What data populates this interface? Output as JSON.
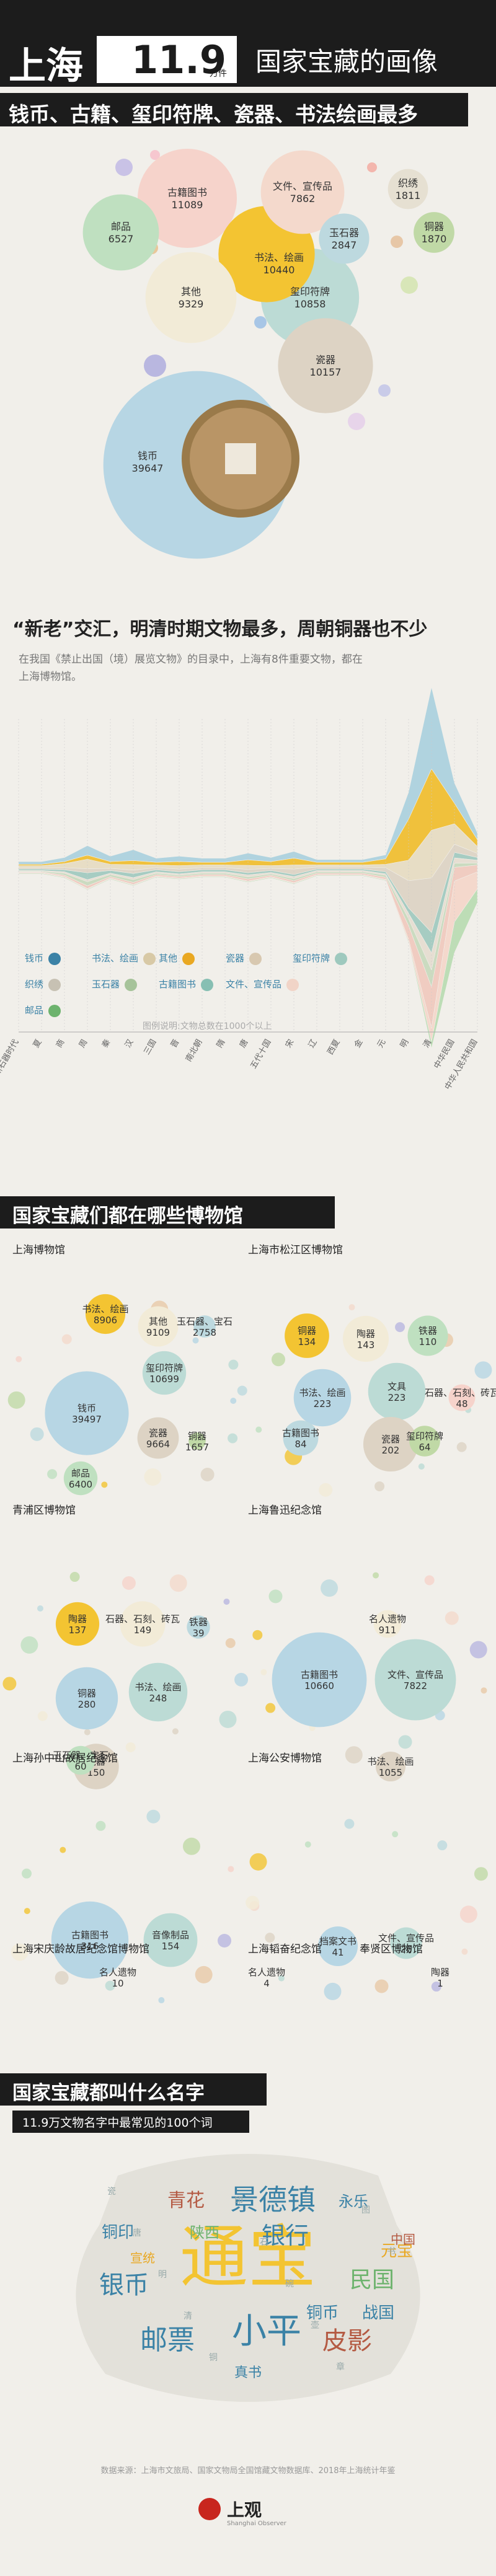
{
  "header": {
    "city": "上海",
    "count": "11.9",
    "count_unit": "万件",
    "title_rest": "国家宝藏的画像",
    "subtitle": "钱币、古籍、玺印符牌、瓷器、书法绘画最多"
  },
  "sections": {
    "s2_title": "“新老”交汇，明清时期文物最多，周朝铜器也不少",
    "s2_intro": "在我国《禁止出国（境）展览文物》的目录中，上海有8件重要文物，都在上海博物馆。",
    "s3_title": "国家宝藏们都在哪些博物馆",
    "s4_title": "国家宝藏都叫什么名字",
    "s4_sub": "11.9万文物名字中最常见的100个词"
  },
  "chart_data": [
    {
      "type": "bubble",
      "title": "",
      "items": [
        {
          "name": "钱币",
          "value": 39647,
          "color": "#b7d6e4"
        },
        {
          "name": "古籍图书",
          "value": 11089,
          "color": "#f6d3cb"
        },
        {
          "name": "玺印符牌",
          "value": 10858,
          "color": "#bcdbd5"
        },
        {
          "name": "书法、绘画",
          "value": 10440,
          "color": "#f3c432"
        },
        {
          "name": "瓷器",
          "value": 10157,
          "color": "#ddd3c4"
        },
        {
          "name": "其他",
          "value": 9329,
          "color": "#f2ebd7"
        },
        {
          "name": "文件、宣传品",
          "value": 7862,
          "color": "#f4d9cc"
        },
        {
          "name": "邮品",
          "value": 6527,
          "color": "#bfe0c0"
        },
        {
          "name": "玉石器",
          "value": 2847,
          "color": "#bdd9df"
        },
        {
          "name": "铜器",
          "value": 1870,
          "color": "#c0d9a6"
        },
        {
          "name": "织绣",
          "value": 1811,
          "color": "#e6e0d2"
        }
      ]
    },
    {
      "type": "area",
      "subtype": "streamgraph",
      "categories": [
        "新石器时代",
        "夏",
        "商",
        "周",
        "秦",
        "汉",
        "三国",
        "晋",
        "南北朝",
        "隋",
        "唐",
        "五代十国",
        "宋",
        "辽",
        "西夏",
        "金",
        "元",
        "明",
        "清",
        "中华民国",
        "中华人民共和国"
      ],
      "series": [
        {
          "name": "钱币",
          "color": "#a9d1de"
        },
        {
          "name": "书法、绘画",
          "color": "#f0bd2a"
        },
        {
          "name": "其他",
          "color": "#e6dcc1"
        },
        {
          "name": "瓷器",
          "color": "#ddd3c4"
        },
        {
          "name": "玺印符牌",
          "color": "#9ec9be"
        },
        {
          "name": "织绣",
          "color": "#e5ddd0"
        },
        {
          "name": "玉石器",
          "color": "#c7d9bc"
        },
        {
          "name": "古籍图书",
          "color": "#f0c9bd"
        },
        {
          "name": "文件、宣传品",
          "color": "#f5d6c9"
        },
        {
          "name": "邮品",
          "color": "#b8dcb1"
        }
      ],
      "legend_color_labels": [
        "#3b82a6",
        "#d8c9a6",
        "#e9a822",
        "#d8c8b0",
        "#9ec9be",
        "#c7c1b3",
        "#a6c39a",
        "#87bfb3",
        "#f1d4c7",
        "#b45a43",
        "#6db36d"
      ],
      "legend_note": "图例说明:文物总数在1000个以上"
    },
    {
      "type": "bubble",
      "title": "上海博物馆",
      "items": [
        {
          "name": "钱币",
          "value": 39497
        },
        {
          "name": "玺印符牌",
          "value": 10699
        },
        {
          "name": "瓷器",
          "value": 9664
        },
        {
          "name": "其他",
          "value": 9109
        },
        {
          "name": "书法、绘画",
          "value": 8906
        },
        {
          "name": "邮品",
          "value": 6400
        },
        {
          "name": "玉石器、宝石",
          "value": 2758
        },
        {
          "name": "铜器",
          "value": 1657
        }
      ]
    },
    {
      "type": "bubble",
      "title": "上海市松江区博物馆",
      "items": [
        {
          "name": "书法、绘画",
          "value": 223
        },
        {
          "name": "文具",
          "value": 223
        },
        {
          "name": "瓷器",
          "value": 202
        },
        {
          "name": "陶器",
          "value": 143
        },
        {
          "name": "铜器",
          "value": 134
        },
        {
          "name": "铁器",
          "value": 110
        },
        {
          "name": "古籍图书",
          "value": 84
        },
        {
          "name": "玺印符牌",
          "value": 64
        },
        {
          "name": "石器、石刻、砖瓦",
          "value": 48
        }
      ]
    },
    {
      "type": "bubble",
      "title": "青浦区博物馆",
      "items": [
        {
          "name": "铜器",
          "value": 280
        },
        {
          "name": "书法、绘画",
          "value": 248
        },
        {
          "name": "瓷器",
          "value": 150
        },
        {
          "name": "石器、石刻、砖瓦",
          "value": 149
        },
        {
          "name": "陶器",
          "value": 137
        },
        {
          "name": "玉石器、宝石",
          "value": 60
        },
        {
          "name": "铁器",
          "value": 39
        }
      ]
    },
    {
      "type": "bubble",
      "title": "上海鲁迅纪念馆",
      "items": [
        {
          "name": "古籍图书",
          "value": 10660
        },
        {
          "name": "文件、宣传品",
          "value": 7822
        },
        {
          "name": "书法、绘画",
          "value": 1055
        },
        {
          "name": "名人遗物",
          "value": 911
        }
      ]
    },
    {
      "type": "bubble",
      "title": "上海孙中山故居纪念馆",
      "items": [
        {
          "name": "古籍图书",
          "value": 316
        },
        {
          "name": "音像制品",
          "value": 154
        }
      ]
    },
    {
      "type": "bubble",
      "title": "上海公安博物馆",
      "items": [
        {
          "name": "档案文书",
          "value": 41
        },
        {
          "name": "文件、宣传品",
          "value": 26
        }
      ]
    },
    {
      "type": "bubble",
      "title": "上海宋庆龄故居纪念馆博物馆",
      "items": [
        {
          "name": "名人遗物",
          "value": 10
        }
      ]
    },
    {
      "type": "bubble",
      "title": "上海韬奋纪念馆",
      "items": [
        {
          "name": "名人遗物",
          "value": 4
        }
      ]
    },
    {
      "type": "bubble",
      "title": "奉贤区博物馆",
      "items": [
        {
          "name": "陶器",
          "value": 1
        }
      ]
    },
    {
      "type": "wordcloud",
      "words": [
        "通宝",
        "小平",
        "景德镇",
        "银行",
        "邮票",
        "皮影",
        "民国",
        "青花",
        "铜印",
        "陕西",
        "永乐",
        "元宝",
        "中国",
        "战国",
        "银币",
        "真书",
        "铜币",
        "宣统"
      ]
    }
  ],
  "footer": {
    "source": "数据来源：上海市文旅局、国家文物局全国馆藏文物数据库、2018年上海统计年鉴",
    "logo": "上观",
    "logo_sub": "Shanghai Observer"
  }
}
